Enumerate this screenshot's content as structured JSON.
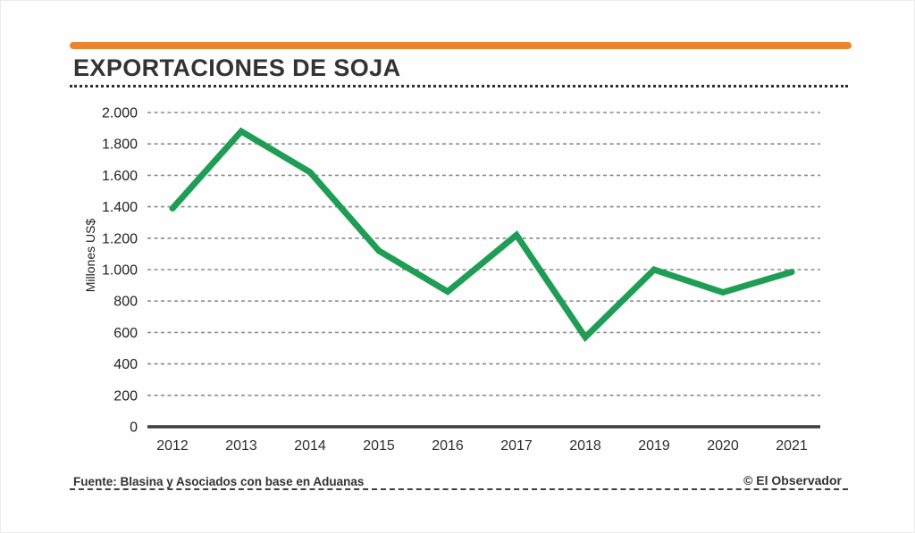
{
  "palette": {
    "accent_orange": "#EB842E",
    "line_green": "#1F9D54",
    "text_dark": "#333333",
    "grid_gray": "#8C8C8C"
  },
  "header": {
    "title": "EXPORTACIONES DE SOJA"
  },
  "footer": {
    "source": "Fuente: Blasina y Asociados con base en Aduanas",
    "credit": "© El Observador"
  },
  "chart_data": {
    "type": "line",
    "title": "EXPORTACIONES DE SOJA",
    "xlabel": "",
    "ylabel": "Millones US$",
    "categories": [
      "2012",
      "2013",
      "2014",
      "2015",
      "2016",
      "2017",
      "2018",
      "2019",
      "2020",
      "2021"
    ],
    "series": [
      {
        "name": "Exportaciones de soja (Millones US$)",
        "values": [
          1390,
          1880,
          1620,
          1120,
          860,
          1220,
          570,
          1000,
          855,
          985
        ]
      }
    ],
    "ylim": [
      0,
      2000
    ],
    "y_ticks": [
      {
        "v": 2000,
        "label": "2.000"
      },
      {
        "v": 1800,
        "label": "1.800"
      },
      {
        "v": 1600,
        "label": "1.600"
      },
      {
        "v": 1400,
        "label": "1.400"
      },
      {
        "v": 1200,
        "label": "1.200"
      },
      {
        "v": 1000,
        "label": "1.000"
      },
      {
        "v": 800,
        "label": "800"
      },
      {
        "v": 600,
        "label": "600"
      },
      {
        "v": 400,
        "label": "400"
      },
      {
        "v": 200,
        "label": "200"
      },
      {
        "v": 0,
        "label": "0"
      }
    ],
    "grid": "horizontal-dashed",
    "legend": "none",
    "line_color": "#1F9D54"
  }
}
